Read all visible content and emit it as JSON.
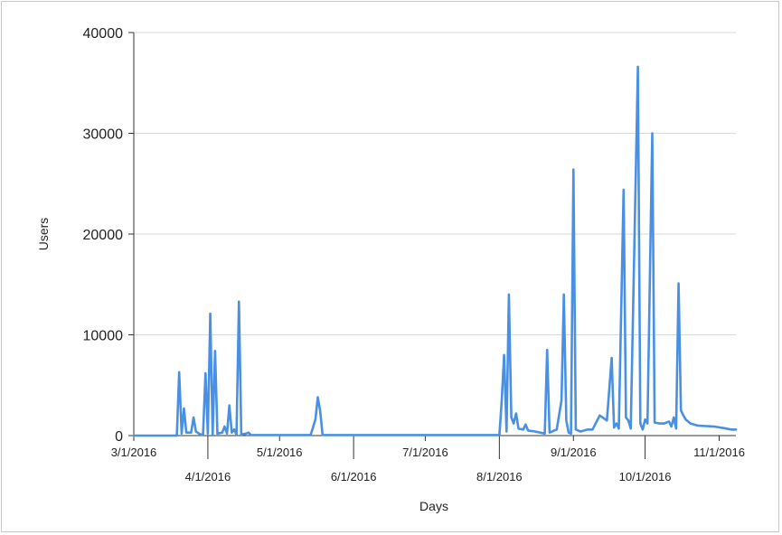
{
  "chart_data": {
    "type": "line",
    "title": "",
    "xlabel": "Days",
    "ylabel": "Users",
    "ylim": [
      0,
      40000
    ],
    "xlim": [
      "2016-03-01",
      "2016-11-08"
    ],
    "grid": true,
    "legend": "none",
    "y_ticks": [
      {
        "value": 0,
        "label": "0"
      },
      {
        "value": 10000,
        "label": "10000"
      },
      {
        "value": 20000,
        "label": "20000"
      },
      {
        "value": 30000,
        "label": "30000"
      },
      {
        "value": 40000,
        "label": "40000"
      }
    ],
    "x_ticks": [
      {
        "date": "2016-03-01",
        "label": "3/1/2016",
        "row": 1
      },
      {
        "date": "2016-04-01",
        "label": "4/1/2016",
        "row": 2
      },
      {
        "date": "2016-05-01",
        "label": "5/1/2016",
        "row": 1
      },
      {
        "date": "2016-06-01",
        "label": "6/1/2016",
        "row": 2
      },
      {
        "date": "2016-07-01",
        "label": "7/1/2016",
        "row": 1
      },
      {
        "date": "2016-08-01",
        "label": "8/1/2016",
        "row": 2
      },
      {
        "date": "2016-09-01",
        "label": "9/1/2016",
        "row": 1
      },
      {
        "date": "2016-10-01",
        "label": "10/1/2016",
        "row": 2
      },
      {
        "date": "2016-11-01",
        "label": "11/1/2016",
        "row": 1
      }
    ],
    "series": [
      {
        "color": "#4a90e2",
        "points": [
          [
            "2016-03-01",
            0
          ],
          [
            "2016-03-19",
            0
          ],
          [
            "2016-03-20",
            6300
          ],
          [
            "2016-03-21",
            200
          ],
          [
            "2016-03-22",
            2700
          ],
          [
            "2016-03-23",
            300
          ],
          [
            "2016-03-25",
            300
          ],
          [
            "2016-03-26",
            1800
          ],
          [
            "2016-03-27",
            400
          ],
          [
            "2016-03-29",
            100
          ],
          [
            "2016-03-30",
            100
          ],
          [
            "2016-03-31",
            6200
          ],
          [
            "2016-04-01",
            200
          ],
          [
            "2016-04-02",
            12100
          ],
          [
            "2016-04-03",
            100
          ],
          [
            "2016-04-04",
            8400
          ],
          [
            "2016-04-05",
            200
          ],
          [
            "2016-04-07",
            300
          ],
          [
            "2016-04-08",
            900
          ],
          [
            "2016-04-09",
            200
          ],
          [
            "2016-04-10",
            3000
          ],
          [
            "2016-04-11",
            300
          ],
          [
            "2016-04-12",
            600
          ],
          [
            "2016-04-13",
            100
          ],
          [
            "2016-04-14",
            13300
          ],
          [
            "2016-04-15",
            100
          ],
          [
            "2016-04-17",
            200
          ],
          [
            "2016-04-18",
            300
          ],
          [
            "2016-04-19",
            50
          ],
          [
            "2016-05-14",
            50
          ],
          [
            "2016-05-16",
            1600
          ],
          [
            "2016-05-17",
            3800
          ],
          [
            "2016-05-18",
            2500
          ],
          [
            "2016-05-19",
            50
          ],
          [
            "2016-08-01",
            50
          ],
          [
            "2016-08-02",
            3500
          ],
          [
            "2016-08-03",
            8000
          ],
          [
            "2016-08-04",
            400
          ],
          [
            "2016-08-05",
            14000
          ],
          [
            "2016-08-06",
            1800
          ],
          [
            "2016-08-07",
            1200
          ],
          [
            "2016-08-08",
            2200
          ],
          [
            "2016-08-09",
            700
          ],
          [
            "2016-08-11",
            600
          ],
          [
            "2016-08-12",
            1100
          ],
          [
            "2016-08-13",
            500
          ],
          [
            "2016-08-16",
            400
          ],
          [
            "2016-08-20",
            200
          ],
          [
            "2016-08-21",
            8500
          ],
          [
            "2016-08-22",
            300
          ],
          [
            "2016-08-25",
            600
          ],
          [
            "2016-08-27",
            3500
          ],
          [
            "2016-08-28",
            14000
          ],
          [
            "2016-08-29",
            1500
          ],
          [
            "2016-08-30",
            300
          ],
          [
            "2016-08-31",
            200
          ],
          [
            "2016-09-01",
            26400
          ],
          [
            "2016-09-02",
            600
          ],
          [
            "2016-09-04",
            400
          ],
          [
            "2016-09-07",
            600
          ],
          [
            "2016-09-09",
            600
          ],
          [
            "2016-09-12",
            2000
          ],
          [
            "2016-09-15",
            1500
          ],
          [
            "2016-09-17",
            7700
          ],
          [
            "2016-09-18",
            800
          ],
          [
            "2016-09-19",
            1200
          ],
          [
            "2016-09-20",
            700
          ],
          [
            "2016-09-22",
            24400
          ],
          [
            "2016-09-23",
            1800
          ],
          [
            "2016-09-24",
            1500
          ],
          [
            "2016-09-25",
            700
          ],
          [
            "2016-09-28",
            36600
          ],
          [
            "2016-09-29",
            1200
          ],
          [
            "2016-09-30",
            600
          ],
          [
            "2016-10-01",
            1600
          ],
          [
            "2016-10-02",
            1200
          ],
          [
            "2016-10-04",
            30000
          ],
          [
            "2016-10-05",
            1300
          ],
          [
            "2016-10-07",
            1200
          ],
          [
            "2016-10-09",
            1200
          ],
          [
            "2016-10-11",
            1400
          ],
          [
            "2016-10-12",
            900
          ],
          [
            "2016-10-13",
            1800
          ],
          [
            "2016-10-14",
            700
          ],
          [
            "2016-10-15",
            15100
          ],
          [
            "2016-10-16",
            2500
          ],
          [
            "2016-10-17",
            2000
          ],
          [
            "2016-10-18",
            1600
          ],
          [
            "2016-10-20",
            1200
          ],
          [
            "2016-10-23",
            1000
          ],
          [
            "2016-10-30",
            900
          ],
          [
            "2016-11-04",
            700
          ],
          [
            "2016-11-06",
            600
          ],
          [
            "2016-11-08",
            600
          ]
        ]
      }
    ]
  }
}
